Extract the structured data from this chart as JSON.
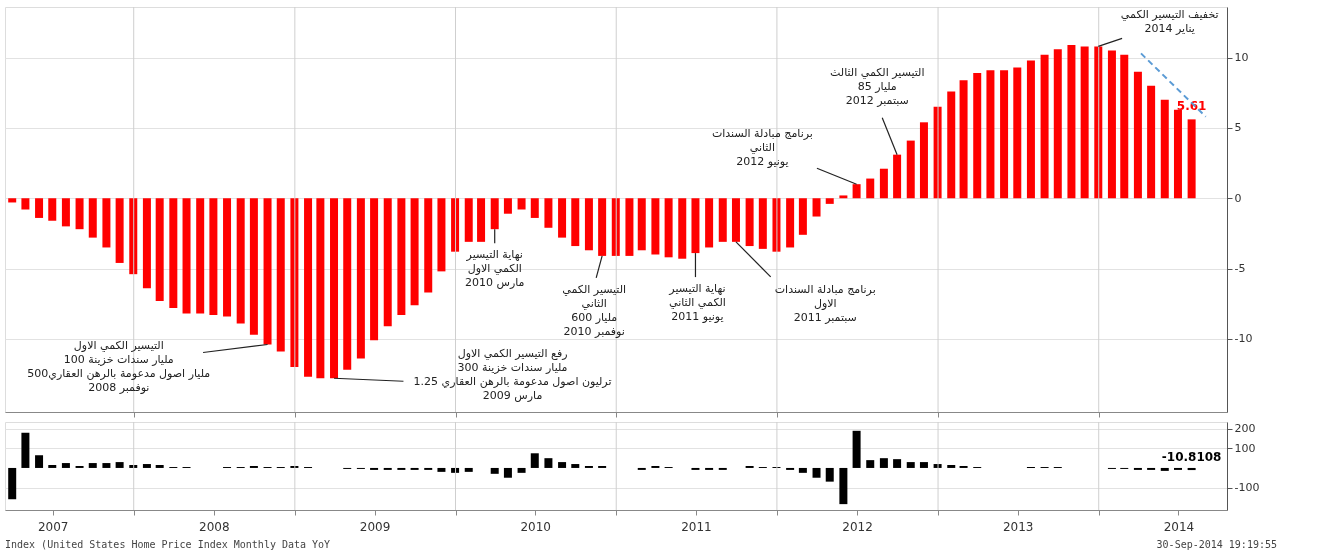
{
  "chart_data": [
    {
      "type": "bar",
      "tick_labels": "y",
      "grid": true,
      "xlim": [
        "2007-03-26",
        "2014-10-08"
      ],
      "xticks": [
        {
          "value": "2008-01-01",
          "label": null
        },
        {
          "value": "2009-01-01",
          "label": null
        },
        {
          "value": "2010-01-01",
          "label": null
        },
        {
          "value": "2011-01-01",
          "label": null
        },
        {
          "value": "2012-01-01",
          "label": null
        },
        {
          "value": "2013-01-01",
          "label": null
        },
        {
          "value": "2014-01-01",
          "label": null
        }
      ],
      "ylim": [
        -15.2,
        13.6
      ],
      "yticks": [
        10,
        5,
        0,
        -5,
        -10
      ],
      "x": [
        "2007-03-31",
        "2007-04-30",
        "2007-05-31",
        "2007-06-30",
        "2007-07-31",
        "2007-08-31",
        "2007-09-30",
        "2007-10-31",
        "2007-11-30",
        "2007-12-31",
        "2008-01-31",
        "2008-02-29",
        "2008-03-31",
        "2008-04-30",
        "2008-05-31",
        "2008-06-30",
        "2008-07-31",
        "2008-08-31",
        "2008-09-30",
        "2008-10-31",
        "2008-11-30",
        "2008-12-31",
        "2009-01-31",
        "2009-02-28",
        "2009-03-31",
        "2009-04-30",
        "2009-05-31",
        "2009-06-30",
        "2009-07-31",
        "2009-08-31",
        "2009-09-30",
        "2009-10-31",
        "2009-11-30",
        "2009-12-31",
        "2010-01-31",
        "2010-02-28",
        "2010-03-31",
        "2010-04-30",
        "2010-05-31",
        "2010-06-30",
        "2010-07-31",
        "2010-08-31",
        "2010-09-30",
        "2010-10-31",
        "2010-11-30",
        "2010-12-31",
        "2011-01-31",
        "2011-02-28",
        "2011-03-31",
        "2011-04-30",
        "2011-05-31",
        "2011-06-30",
        "2011-07-31",
        "2011-08-31",
        "2011-09-30",
        "2011-10-31",
        "2011-11-30",
        "2011-12-31",
        "2012-01-31",
        "2012-02-29",
        "2012-03-31",
        "2012-04-30",
        "2012-05-31",
        "2012-06-30",
        "2012-07-31",
        "2012-08-31",
        "2012-09-30",
        "2012-10-31",
        "2012-11-30",
        "2012-12-31",
        "2013-01-31",
        "2013-02-28",
        "2013-03-31",
        "2013-04-30",
        "2013-05-31",
        "2013-06-30",
        "2013-07-31",
        "2013-08-31",
        "2013-09-30",
        "2013-10-31",
        "2013-11-30",
        "2013-12-31",
        "2014-01-31",
        "2014-02-28",
        "2014-03-31",
        "2014-04-30",
        "2014-05-31",
        "2014-06-30",
        "2014-07-31"
      ],
      "series": [
        {
          "color": "#ff0000",
          "values": [
            -0.3,
            -0.8,
            -1.4,
            -1.6,
            -2.0,
            -2.2,
            -2.8,
            -3.5,
            -4.6,
            -5.4,
            -6.4,
            -7.3,
            -7.8,
            -8.2,
            -8.2,
            -8.3,
            -8.4,
            -8.9,
            -9.7,
            -10.4,
            -10.9,
            -12.0,
            -12.7,
            -12.8,
            -12.8,
            -12.2,
            -11.4,
            -10.1,
            -9.1,
            -8.3,
            -7.6,
            -6.7,
            -5.2,
            -3.8,
            -3.1,
            -3.1,
            -2.2,
            -1.1,
            -0.8,
            -1.4,
            -2.1,
            -2.8,
            -3.4,
            -3.7,
            -4.1,
            -4.1,
            -4.1,
            -3.7,
            -4.0,
            -4.2,
            -4.3,
            -3.9,
            -3.5,
            -3.1,
            -3.1,
            -3.4,
            -3.6,
            -3.8,
            -3.5,
            -2.6,
            -1.3,
            -0.4,
            0.2,
            1.0,
            1.4,
            2.1,
            3.1,
            4.1,
            5.4,
            6.5,
            7.6,
            8.4,
            8.9,
            9.1,
            9.1,
            9.3,
            9.8,
            10.2,
            10.6,
            10.9,
            10.8,
            10.8,
            10.5,
            10.2,
            9.0,
            8.0,
            7.0,
            6.3,
            5.61
          ],
          "value_labels": [
            null,
            null,
            null,
            null,
            null,
            null,
            null,
            null,
            null,
            null,
            null,
            null,
            null,
            null,
            null,
            null,
            null,
            null,
            null,
            null,
            null,
            null,
            null,
            null,
            null,
            null,
            null,
            null,
            null,
            null,
            null,
            null,
            null,
            null,
            null,
            null,
            null,
            null,
            null,
            null,
            null,
            null,
            null,
            null,
            null,
            null,
            null,
            null,
            null,
            null,
            null,
            null,
            null,
            null,
            null,
            null,
            null,
            null,
            null,
            null,
            null,
            null,
            null,
            null,
            null,
            null,
            null,
            null,
            null,
            null,
            null,
            null,
            null,
            null,
            null,
            null,
            null,
            null,
            null,
            null,
            null,
            null,
            null,
            null,
            null,
            null,
            null,
            null,
            "5.61"
          ]
        },
        {
          "type": "line",
          "color": "#5b9bd5",
          "line_style": "dashed",
          "x": [
            "2014-04-07",
            "2014-09-01"
          ],
          "values": [
            10.3,
            5.8
          ]
        }
      ],
      "annotations": [
        {
          "text": "التيسير الكمي الاول\n100 مليار سندات خزينة\n500مليار اصول مدعومة بالرهن العقاري\nنوفمبر 2008",
          "x": "2008-10-31",
          "y": -10.4
        },
        {
          "text": "رفع التيسير الكمي الاول\n300 مليار سندات خزينة\n1.25 ترليون اصول مدعومة بالرهن العقاري\nمارس 2009",
          "x": "2009-03-31",
          "y": -12.8
        },
        {
          "text": "نهاية التيسير\nالكمي الاول\nمارس 2010",
          "x": "2010-03-31",
          "y": -2.2
        },
        {
          "text": "التيسير الكمي\nالثاني\n600 مليار\nنوفمبر 2010",
          "x": "2010-11-30",
          "y": -4.1
        },
        {
          "text": "نهاية التيسير\nالكمي الثاني\nيونيو 2011",
          "x": "2011-06-30",
          "y": -3.9
        },
        {
          "text": "برنامج مبادلة السندات\nالاول\nسبتمبر 2011",
          "x": "2011-09-30",
          "y": -3.1
        },
        {
          "text": "برنامج مبادلة السندات\nالثاني\nيونيو 2012",
          "x": "2012-06-30",
          "y": 1.0
        },
        {
          "text": "التيسير الكمي الثالث\n85 مليار\nسبتمبر 2012",
          "x": "2012-09-30",
          "y": 3.1
        },
        {
          "text": "تخفيف التيسير الكمي\nيناير 2014",
          "x": "2013-12-31",
          "y": 10.8
        }
      ]
    },
    {
      "type": "bar",
      "grid": true,
      "xlim": [
        "2007-03-26",
        "2014-10-08"
      ],
      "xticks": [
        {
          "value": "2007-07-01",
          "label": "2007"
        },
        {
          "value": "2008-01-01",
          "label": null
        },
        {
          "value": "2008-07-01",
          "label": "2008"
        },
        {
          "value": "2009-01-01",
          "label": null
        },
        {
          "value": "2009-07-01",
          "label": "2009"
        },
        {
          "value": "2010-01-01",
          "label": null
        },
        {
          "value": "2010-07-01",
          "label": "2010"
        },
        {
          "value": "2011-01-01",
          "label": null
        },
        {
          "value": "2011-07-01",
          "label": "2011"
        },
        {
          "value": "2012-01-01",
          "label": null
        },
        {
          "value": "2012-07-01",
          "label": "2012"
        },
        {
          "value": "2013-01-01",
          "label": null
        },
        {
          "value": "2013-07-01",
          "label": "2013"
        },
        {
          "value": "2014-01-01",
          "label": null
        },
        {
          "value": "2014-07-01",
          "label": "2014"
        }
      ],
      "ylim": [
        -215,
        235
      ],
      "yticks": [
        200,
        100,
        -100
      ],
      "x": [
        "2007-03-31",
        "2007-04-30",
        "2007-05-31",
        "2007-06-30",
        "2007-07-31",
        "2007-08-31",
        "2007-09-30",
        "2007-10-31",
        "2007-11-30",
        "2007-12-31",
        "2008-01-31",
        "2008-02-29",
        "2008-03-31",
        "2008-04-30",
        "2008-05-31",
        "2008-06-30",
        "2008-07-31",
        "2008-08-31",
        "2008-09-30",
        "2008-10-31",
        "2008-11-30",
        "2008-12-31",
        "2009-01-31",
        "2009-02-28",
        "2009-03-31",
        "2009-04-30",
        "2009-05-31",
        "2009-06-30",
        "2009-07-31",
        "2009-08-31",
        "2009-09-30",
        "2009-10-31",
        "2009-11-30",
        "2009-12-31",
        "2010-01-31",
        "2010-02-28",
        "2010-03-31",
        "2010-04-30",
        "2010-05-31",
        "2010-06-30",
        "2010-07-31",
        "2010-08-31",
        "2010-09-30",
        "2010-10-31",
        "2010-11-30",
        "2010-12-31",
        "2011-01-31",
        "2011-02-28",
        "2011-03-31",
        "2011-04-30",
        "2011-05-31",
        "2011-06-30",
        "2011-07-31",
        "2011-08-31",
        "2011-09-30",
        "2011-10-31",
        "2011-11-30",
        "2011-12-31",
        "2012-01-31",
        "2012-02-29",
        "2012-03-31",
        "2012-04-30",
        "2012-05-31",
        "2012-06-30",
        "2012-07-31",
        "2012-08-31",
        "2012-09-30",
        "2012-10-31",
        "2012-11-30",
        "2012-12-31",
        "2013-01-31",
        "2013-02-28",
        "2013-03-31",
        "2013-04-30",
        "2013-05-31",
        "2013-06-30",
        "2013-07-31",
        "2013-08-31",
        "2013-09-30",
        "2013-10-31",
        "2013-11-30",
        "2013-12-31",
        "2014-01-31",
        "2014-02-28",
        "2014-03-31",
        "2014-04-30",
        "2014-05-31",
        "2014-06-30",
        "2014-07-31"
      ],
      "series": [
        {
          "color": "#000000",
          "values": [
            -160,
            180,
            65,
            15,
            25,
            10,
            25,
            25,
            30,
            15,
            20,
            15,
            5,
            5,
            0,
            0,
            5,
            5,
            10,
            5,
            5,
            10,
            5,
            0,
            0,
            -5,
            -5,
            -10,
            -10,
            -10,
            -10,
            -10,
            -20,
            -25,
            -20,
            0,
            -30,
            -50,
            -25,
            75,
            50,
            30,
            20,
            10,
            10,
            0,
            0,
            -10,
            10,
            5,
            0,
            -10,
            -10,
            -10,
            0,
            10,
            5,
            5,
            -10,
            -25,
            -50,
            -70,
            -185,
            190,
            40,
            50,
            45,
            30,
            30,
            20,
            15,
            10,
            5,
            0,
            0,
            0,
            5,
            5,
            5,
            0,
            0,
            0,
            -5,
            -5,
            -10,
            -10,
            -15,
            -10,
            -10.8108
          ],
          "value_labels": [
            null,
            null,
            null,
            null,
            null,
            null,
            null,
            null,
            null,
            null,
            null,
            null,
            null,
            null,
            null,
            null,
            null,
            null,
            null,
            null,
            null,
            null,
            null,
            null,
            null,
            null,
            null,
            null,
            null,
            null,
            null,
            null,
            null,
            null,
            null,
            null,
            null,
            null,
            null,
            null,
            null,
            null,
            null,
            null,
            null,
            null,
            null,
            null,
            null,
            null,
            null,
            null,
            null,
            null,
            null,
            null,
            null,
            null,
            null,
            null,
            null,
            null,
            null,
            null,
            null,
            null,
            null,
            null,
            null,
            null,
            null,
            null,
            null,
            null,
            null,
            null,
            null,
            null,
            null,
            null,
            null,
            null,
            null,
            null,
            null,
            null,
            null,
            null,
            "-10.8108"
          ]
        }
      ],
      "annotations": [
        "Index (United States Home Price Index Monthly Data YoY",
        "30-Sep-2014 19:19:55"
      ]
    }
  ]
}
